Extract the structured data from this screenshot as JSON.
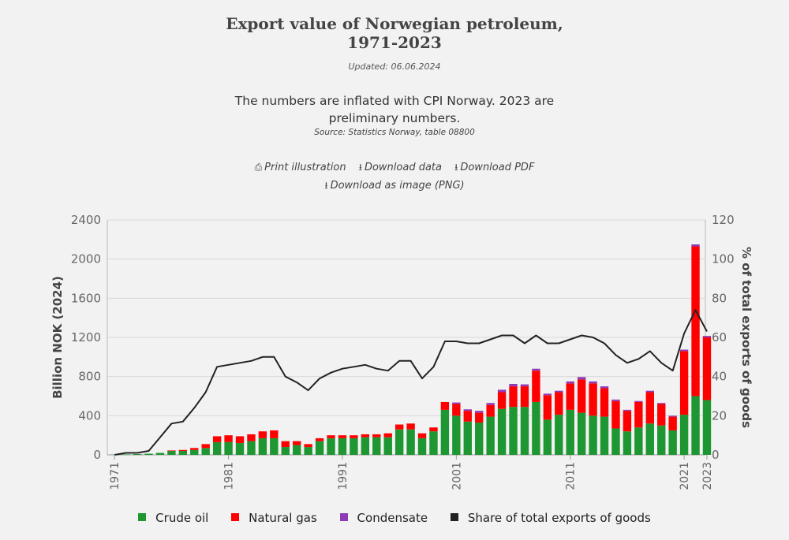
{
  "header": {
    "title_line1": "Export value of Norwegian petroleum,",
    "title_line2": "1971-2023",
    "updated": "Updated: 06.06.2024",
    "subtitle_line1": "The numbers are inflated with CPI Norway. 2023 are",
    "subtitle_line2": "preliminary numbers.",
    "source": "Source: Statistics Norway, table 08800"
  },
  "actions": {
    "print": "Print illustration",
    "download_data": "Download data",
    "download_pdf": "Download PDF",
    "download_png": "Download as image (PNG)"
  },
  "legend": {
    "crude": "Crude oil",
    "gas": "Natural gas",
    "condensate": "Condensate",
    "share": "Share of total exports of goods"
  },
  "colors": {
    "crude": "#1e9632",
    "gas": "#ff0000",
    "condensate": "#8f3bb8",
    "share": "#222222",
    "grid": "#d8d8d8",
    "axis_text": "#666666"
  },
  "chart_data": {
    "type": "bar",
    "stacked": true,
    "ylabel": "Billion NOK (2024)",
    "y2label": "% of total exports of goods",
    "ylim": [
      0,
      2400
    ],
    "y2lim": [
      0,
      120
    ],
    "yticks": [
      0,
      400,
      800,
      1200,
      1600,
      2000,
      2400
    ],
    "y2ticks": [
      0,
      20,
      40,
      60,
      80,
      100,
      120
    ],
    "xtick_labels": [
      "1971",
      "1981",
      "1991",
      "2001",
      "2011",
      "2021",
      "2023"
    ],
    "x": [
      1971,
      1972,
      1973,
      1974,
      1975,
      1976,
      1977,
      1978,
      1979,
      1980,
      1981,
      1982,
      1983,
      1984,
      1985,
      1986,
      1987,
      1988,
      1989,
      1990,
      1991,
      1992,
      1993,
      1994,
      1995,
      1996,
      1997,
      1998,
      1999,
      2000,
      2001,
      2002,
      2003,
      2004,
      2005,
      2006,
      2007,
      2008,
      2009,
      2010,
      2011,
      2012,
      2013,
      2014,
      2015,
      2016,
      2017,
      2018,
      2019,
      2020,
      2021,
      2022,
      2023
    ],
    "series": [
      {
        "name": "Crude oil",
        "axis": "left",
        "type": "bar",
        "values": [
          2,
          5,
          8,
          12,
          20,
          40,
          40,
          50,
          70,
          130,
          130,
          120,
          140,
          170,
          170,
          80,
          100,
          80,
          140,
          170,
          170,
          170,
          180,
          180,
          180,
          260,
          260,
          170,
          240,
          460,
          400,
          340,
          330,
          390,
          470,
          490,
          490,
          540,
          360,
          410,
          460,
          430,
          400,
          390,
          270,
          240,
          280,
          320,
          300,
          250,
          410,
          600,
          560
        ]
      },
      {
        "name": "Natural gas",
        "axis": "left",
        "type": "bar",
        "values": [
          0,
          0,
          0,
          0,
          0,
          5,
          10,
          20,
          40,
          60,
          70,
          70,
          70,
          70,
          80,
          60,
          40,
          30,
          30,
          30,
          30,
          30,
          30,
          30,
          40,
          50,
          60,
          50,
          40,
          80,
          120,
          110,
          100,
          120,
          170,
          210,
          210,
          320,
          250,
          230,
          270,
          340,
          330,
          290,
          280,
          210,
          260,
          320,
          220,
          140,
          650,
          1530,
          640
        ]
      },
      {
        "name": "Condensate",
        "axis": "left",
        "type": "bar",
        "values": [
          0,
          0,
          0,
          0,
          0,
          0,
          0,
          0,
          0,
          0,
          0,
          0,
          0,
          0,
          0,
          0,
          0,
          0,
          0,
          0,
          0,
          0,
          0,
          0,
          0,
          0,
          0,
          0,
          0,
          0,
          15,
          15,
          20,
          20,
          25,
          25,
          20,
          20,
          15,
          15,
          20,
          25,
          20,
          20,
          15,
          10,
          10,
          15,
          10,
          10,
          15,
          20,
          15
        ]
      },
      {
        "name": "Share of total exports of goods",
        "axis": "right",
        "type": "line",
        "values": [
          0,
          1,
          1,
          2,
          9,
          16,
          17,
          24,
          32,
          45,
          46,
          47,
          48,
          50,
          50,
          40,
          37,
          33,
          39,
          42,
          44,
          45,
          46,
          44,
          43,
          48,
          48,
          39,
          45,
          58,
          58,
          57,
          57,
          59,
          61,
          61,
          57,
          61,
          57,
          57,
          59,
          61,
          60,
          57,
          51,
          47,
          49,
          53,
          47,
          43,
          62,
          74,
          63
        ]
      }
    ]
  }
}
